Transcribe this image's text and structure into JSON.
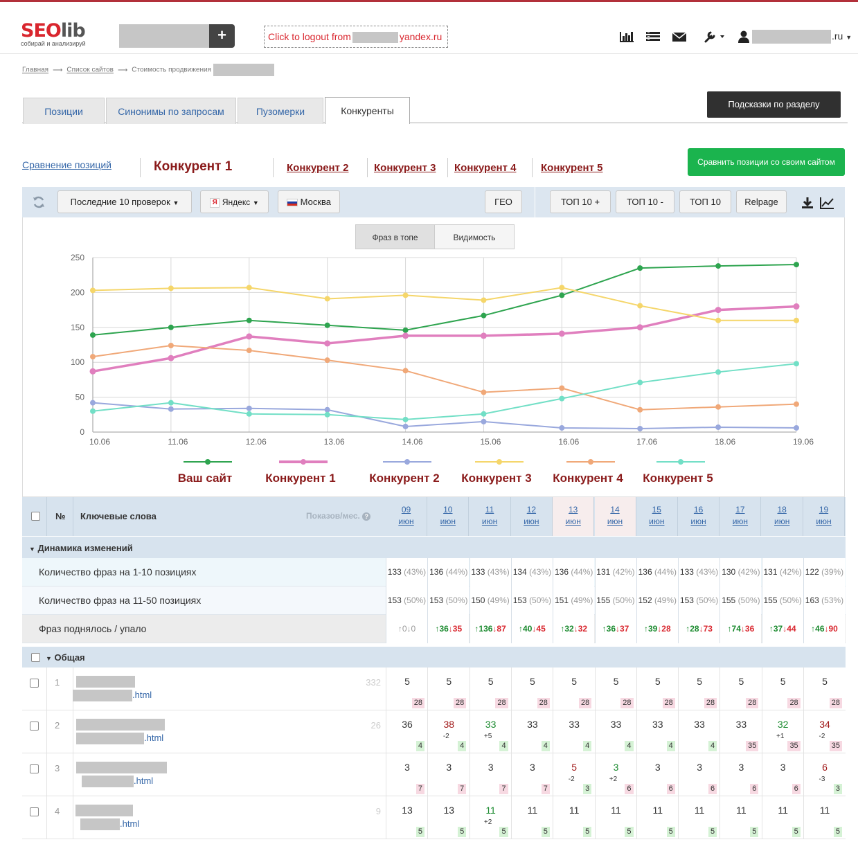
{
  "header": {
    "logo_main_1": "SEO",
    "logo_main_2": "lib",
    "logo_tagline": "собирай и анализируй",
    "add_button": "+",
    "logout_prefix": "Click to logout from",
    "logout_suffix": "yandex.ru",
    "user_suffix": ".ru",
    "icons": [
      "bar-chart-icon",
      "list-icon",
      "mail-icon",
      "wrench-icon",
      "user-icon"
    ]
  },
  "breadcrumb": {
    "items": [
      "Главная",
      "Список сайтов"
    ],
    "current": "Стоимость продвижения"
  },
  "tabs": [
    {
      "label": "Позиции",
      "active": false
    },
    {
      "label": "Синонимы по запросам",
      "active": false
    },
    {
      "label": "Пузомерки",
      "active": false
    },
    {
      "label": "Конкуренты",
      "active": true
    }
  ],
  "hint_button": "Подсказки по разделу",
  "subnav": {
    "compare_link": "Сравнение позиций",
    "competitors": [
      "Конкурент 1",
      "Конкурент 2",
      "Конкурент 3",
      "Конкурент 4",
      "Конкурент 5"
    ],
    "compare_button": "Сравнить позиции со своим сайтом"
  },
  "toolbar": {
    "period": "Последние 10 проверок",
    "engine": "Яндекс",
    "region": "Москва",
    "geo": "ГЕО",
    "top10plus": "ТОП 10 +",
    "top10minus": "ТОП 10 -",
    "top10": "ТОП 10",
    "relpage": "Relpage"
  },
  "chart_toggle": {
    "phrases": "Фраз в топе",
    "visibility": "Видимость"
  },
  "chart_data": {
    "type": "line",
    "x": [
      "10.06",
      "11.06",
      "12.06",
      "13.06",
      "14.06",
      "15.06",
      "16.06",
      "17.06",
      "18.06",
      "19.06"
    ],
    "ylim": [
      0,
      250
    ],
    "yticks": [
      0,
      50,
      100,
      150,
      200,
      250
    ],
    "grid": true,
    "legend_position": "bottom",
    "series": [
      {
        "name": "Ваш сайт",
        "color": "#2ea44f",
        "values": [
          139,
          150,
          160,
          153,
          146,
          167,
          196,
          235,
          238,
          240
        ]
      },
      {
        "name": "Конкурент 1",
        "color": "#e07fbe",
        "values": [
          87,
          106,
          137,
          127,
          138,
          138,
          141,
          150,
          175,
          180
        ]
      },
      {
        "name": "Конкурент 2",
        "color": "#99a8dd",
        "values": [
          42,
          33,
          34,
          32,
          8,
          15,
          6,
          5,
          7,
          6
        ]
      },
      {
        "name": "Конкурент 3",
        "color": "#f5d66a",
        "values": [
          203,
          206,
          207,
          191,
          196,
          189,
          207,
          181,
          160,
          160
        ]
      },
      {
        "name": "Конкурент 4",
        "color": "#f0a878",
        "values": [
          108,
          124,
          117,
          103,
          88,
          57,
          63,
          32,
          36,
          40
        ]
      },
      {
        "name": "Конкурент 5",
        "color": "#72dfc6",
        "values": [
          30,
          42,
          26,
          25,
          18,
          26,
          48,
          71,
          86,
          98
        ]
      }
    ],
    "legend_labels": [
      "Ваш сайт",
      "Конкурент 1",
      "Конкурент 2",
      "Конкурент 3",
      "Конкурент 4",
      "Конкурент 5"
    ]
  },
  "table": {
    "col_num": "№",
    "col_keywords": "Ключевые слова",
    "col_shows": "Показов/мес.",
    "dates": [
      {
        "day": "09",
        "month": "июн"
      },
      {
        "day": "10",
        "month": "июн"
      },
      {
        "day": "11",
        "month": "июн"
      },
      {
        "day": "12",
        "month": "июн"
      },
      {
        "day": "13",
        "month": "июн"
      },
      {
        "day": "14",
        "month": "июн"
      },
      {
        "day": "15",
        "month": "июн"
      },
      {
        "day": "16",
        "month": "июн"
      },
      {
        "day": "17",
        "month": "июн"
      },
      {
        "day": "18",
        "month": "июн"
      },
      {
        "day": "19",
        "month": "июн"
      }
    ],
    "dynamics_title": "Динамика изменений",
    "dyn_rows": [
      {
        "label": "Количество фраз на 1-10 позициях",
        "values": [
          [
            "133",
            "(43%)"
          ],
          [
            "136",
            "(44%)"
          ],
          [
            "133",
            "(43%)"
          ],
          [
            "134",
            "(43%)"
          ],
          [
            "136",
            "(44%)"
          ],
          [
            "131",
            "(42%)"
          ],
          [
            "136",
            "(44%)"
          ],
          [
            "133",
            "(43%)"
          ],
          [
            "130",
            "(42%)"
          ],
          [
            "131",
            "(42%)"
          ],
          [
            "122",
            "(39%)"
          ]
        ]
      },
      {
        "label": "Количество фраз на 11-50 позициях",
        "values": [
          [
            "153",
            "(50%)"
          ],
          [
            "153",
            "(50%)"
          ],
          [
            "150",
            "(49%)"
          ],
          [
            "153",
            "(50%)"
          ],
          [
            "151",
            "(49%)"
          ],
          [
            "155",
            "(50%)"
          ],
          [
            "152",
            "(49%)"
          ],
          [
            "153",
            "(50%)"
          ],
          [
            "155",
            "(50%)"
          ],
          [
            "155",
            "(50%)"
          ],
          [
            "163",
            "(53%)"
          ]
        ]
      }
    ],
    "updown_label": "Фраз поднялось / упало",
    "updown": [
      [
        "0",
        "0"
      ],
      [
        "36",
        "35"
      ],
      [
        "136",
        "87"
      ],
      [
        "40",
        "45"
      ],
      [
        "32",
        "32"
      ],
      [
        "36",
        "37"
      ],
      [
        "39",
        "28"
      ],
      [
        "28",
        "73"
      ],
      [
        "74",
        "36"
      ],
      [
        "37",
        "44"
      ],
      [
        "46",
        "90"
      ]
    ],
    "group_title": "Общая",
    "keywords": [
      {
        "num": "1",
        "shows": "332",
        "url_suffix": ".html",
        "cells": [
          [
            "5",
            "",
            "28",
            "p"
          ],
          [
            "5",
            "",
            "28",
            "p"
          ],
          [
            "5",
            "",
            "28",
            "p"
          ],
          [
            "5",
            "",
            "28",
            "p"
          ],
          [
            "5",
            "",
            "28",
            "p"
          ],
          [
            "5",
            "",
            "28",
            "p"
          ],
          [
            "5",
            "",
            "28",
            "p"
          ],
          [
            "5",
            "",
            "28",
            "p"
          ],
          [
            "5",
            "",
            "28",
            "p"
          ],
          [
            "5",
            "",
            "28",
            "p"
          ],
          [
            "5",
            "",
            "28",
            "p"
          ]
        ]
      },
      {
        "num": "2",
        "shows": "26",
        "url_suffix": ".html",
        "cells": [
          [
            "36",
            "",
            "4",
            "g"
          ],
          [
            "38",
            "-2",
            "4",
            "g"
          ],
          [
            "33",
            "+5",
            "4",
            "g"
          ],
          [
            "33",
            "",
            "4",
            "g"
          ],
          [
            "33",
            "",
            "4",
            "g"
          ],
          [
            "33",
            "",
            "4",
            "g"
          ],
          [
            "33",
            "",
            "4",
            "g"
          ],
          [
            "33",
            "",
            "4",
            "g"
          ],
          [
            "33",
            "",
            "35",
            "p"
          ],
          [
            "32",
            "+1",
            "35",
            "p"
          ],
          [
            "34",
            "-2",
            "35",
            "p"
          ]
        ]
      },
      {
        "num": "3",
        "shows": "",
        "url_suffix": ".html",
        "cells": [
          [
            "3",
            "",
            "7",
            "p"
          ],
          [
            "3",
            "",
            "7",
            "p"
          ],
          [
            "3",
            "",
            "7",
            "p"
          ],
          [
            "3",
            "",
            "7",
            "p"
          ],
          [
            "5",
            "-2",
            "3",
            "g"
          ],
          [
            "3",
            "+2",
            "6",
            "p"
          ],
          [
            "3",
            "",
            "6",
            "p"
          ],
          [
            "3",
            "",
            "6",
            "p"
          ],
          [
            "3",
            "",
            "6",
            "p"
          ],
          [
            "3",
            "",
            "6",
            "p"
          ],
          [
            "6",
            "-3",
            "3",
            "g"
          ]
        ]
      },
      {
        "num": "4",
        "shows": "9",
        "url_suffix": ".html",
        "cells": [
          [
            "13",
            "",
            "5",
            "g"
          ],
          [
            "13",
            "",
            "5",
            "g"
          ],
          [
            "11",
            "+2",
            "5",
            "g"
          ],
          [
            "11",
            "",
            "5",
            "g"
          ],
          [
            "11",
            "",
            "5",
            "g"
          ],
          [
            "11",
            "",
            "5",
            "g"
          ],
          [
            "11",
            "",
            "5",
            "g"
          ],
          [
            "11",
            "",
            "5",
            "g"
          ],
          [
            "11",
            "",
            "5",
            "g"
          ],
          [
            "11",
            "",
            "5",
            "g"
          ],
          [
            "11",
            "",
            "5",
            "g"
          ]
        ]
      }
    ]
  }
}
